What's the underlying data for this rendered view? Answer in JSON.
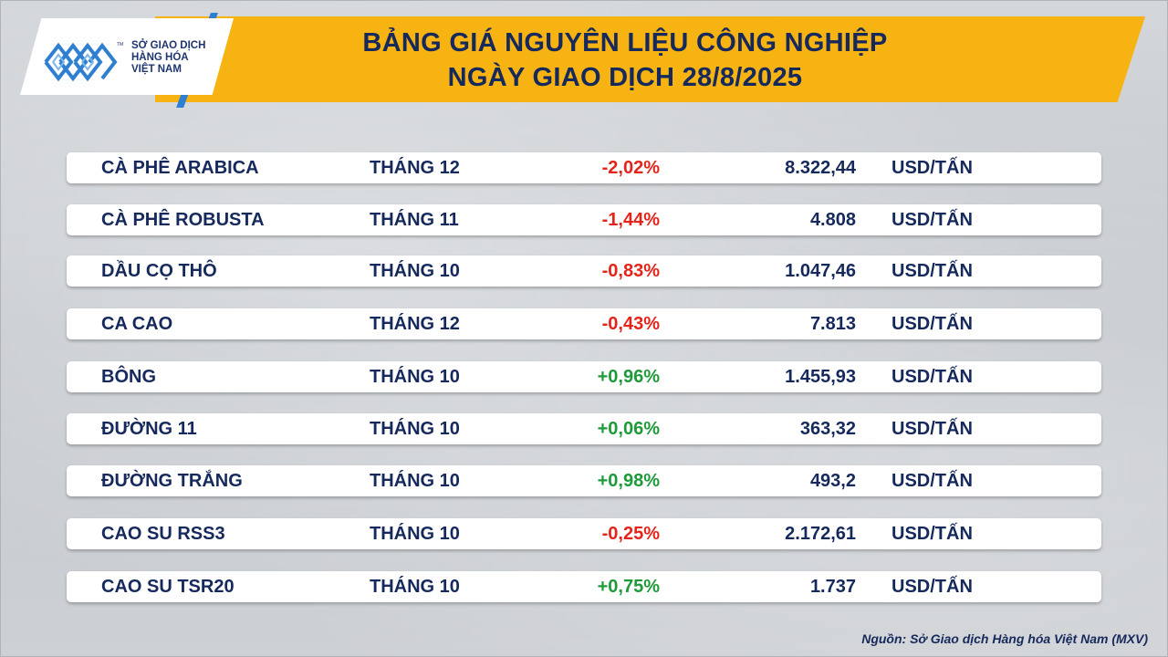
{
  "header": {
    "title_line1": "BẢNG GIÁ NGUYÊN LIỆU CÔNG NGHIỆP",
    "title_line2": "NGÀY GIAO DỊCH 28/8/2025"
  },
  "logo": {
    "line1": "SỞ GIAO DỊCH",
    "line2": "HÀNG HÓA",
    "line3": "VIỆT NAM",
    "tm": "TM"
  },
  "rows": [
    {
      "name": "CÀ PHÊ ARABICA",
      "month": "THÁNG 12",
      "change": "-2,02%",
      "direction": "neg",
      "price": "8.322,44",
      "unit": "USD/TẤN"
    },
    {
      "name": "CÀ PHÊ ROBUSTA",
      "month": "THÁNG 11",
      "change": "-1,44%",
      "direction": "neg",
      "price": "4.808",
      "unit": "USD/TẤN"
    },
    {
      "name": "DẦU CỌ THÔ",
      "month": "THÁNG 10",
      "change": "-0,83%",
      "direction": "neg",
      "price": "1.047,46",
      "unit": "USD/TẤN"
    },
    {
      "name": "CA CAO",
      "month": "THÁNG 12",
      "change": "-0,43%",
      "direction": "neg",
      "price": "7.813",
      "unit": "USD/TẤN"
    },
    {
      "name": "BÔNG",
      "month": "THÁNG 10",
      "change": "+0,96%",
      "direction": "pos",
      "price": "1.455,93",
      "unit": "USD/TẤN"
    },
    {
      "name": "ĐƯỜNG 11",
      "month": "THÁNG 10",
      "change": "+0,06%",
      "direction": "pos",
      "price": "363,32",
      "unit": "USD/TẤN"
    },
    {
      "name": "ĐƯỜNG TRẮNG",
      "month": "THÁNG 10",
      "change": "+0,98%",
      "direction": "pos",
      "price": "493,2",
      "unit": "USD/TẤN"
    },
    {
      "name": "CAO SU RSS3",
      "month": "THÁNG 10",
      "change": "-0,25%",
      "direction": "neg",
      "price": "2.172,61",
      "unit": "USD/TẤN"
    },
    {
      "name": "CAO SU TSR20",
      "month": "THÁNG 10",
      "change": "+0,75%",
      "direction": "pos",
      "price": "1.737",
      "unit": "USD/TẤN"
    }
  ],
  "footer": {
    "source": "Nguồn: Sở Giao dịch Hàng hóa Việt Nam (MXV)"
  },
  "colors": {
    "banner": "#f7b311",
    "navy": "#16295c",
    "negative": "#e3241b",
    "positive": "#1e9a3a",
    "logo_blue": "#2f7fd0"
  }
}
